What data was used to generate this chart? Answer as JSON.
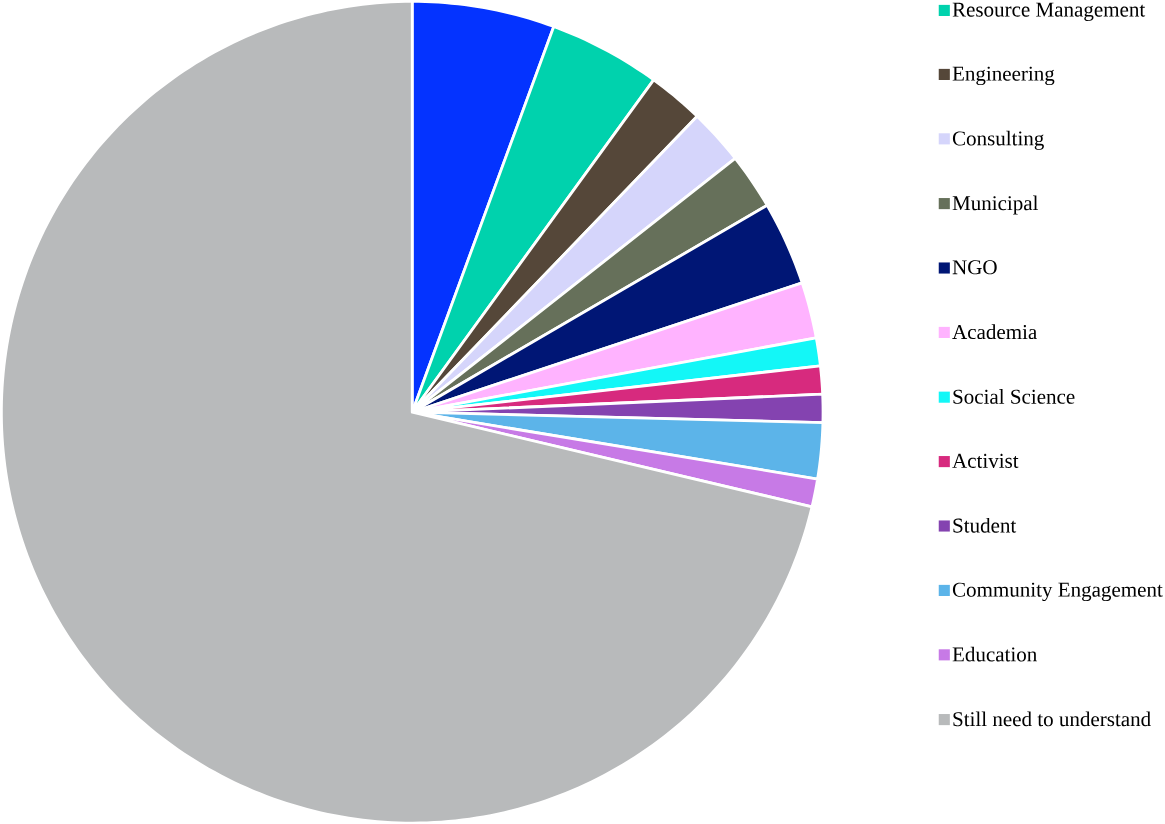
{
  "chart_data": {
    "type": "pie",
    "categories": [
      null,
      "Resource Management",
      "Engineering",
      "Consulting",
      "Municipal",
      "NGO",
      "Academia",
      "Social Science",
      "Activist",
      "Student",
      "Community Engagement",
      "Education",
      "Still need to understand"
    ],
    "values": [
      5.6,
      4.4,
      2.2,
      2.2,
      2.2,
      3.3,
      2.2,
      1.1,
      1.1,
      1.1,
      2.2,
      1.1,
      71.3
    ],
    "colors": [
      "#0433ff",
      "#00d2ad",
      "#554739",
      "#d5d5fb",
      "#66705a",
      "#001675",
      "#ffb3ff",
      "#13f7f7",
      "#d72a7e",
      "#8443b0",
      "#5cb4e9",
      "#c77ae6",
      "#b8babb"
    ],
    "legend": "right"
  }
}
